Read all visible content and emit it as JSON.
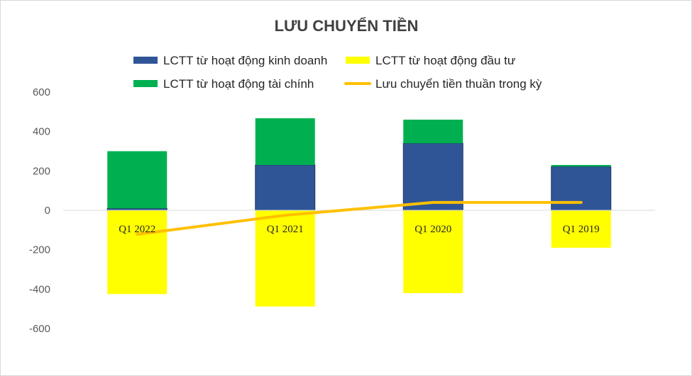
{
  "chart_data": {
    "type": "bar",
    "title": "LƯU CHUYỂN TIỀN",
    "xlabel": "",
    "ylabel": "",
    "ylim": [
      -600,
      600
    ],
    "yticks": [
      600,
      400,
      200,
      0,
      -200,
      -400,
      -600
    ],
    "categories": [
      "Q1 2022",
      "Q1 2021",
      "Q1 2020",
      "Q1 2019"
    ],
    "stacked": true,
    "grid": false,
    "legend_position": "top",
    "series": [
      {
        "name": "LCTT từ hoạt động kinh doanh",
        "type": "bar",
        "color": "#2f5597",
        "values": [
          10,
          230,
          340,
          222
        ]
      },
      {
        "name": "LCTT từ hoạt động đầu tư",
        "type": "bar",
        "color": "#ffff00",
        "values": [
          -425,
          -488,
          -420,
          -190
        ]
      },
      {
        "name": "LCTT từ hoạt động tài chính",
        "type": "bar",
        "color": "#00b050",
        "values": [
          290,
          237,
          120,
          8
        ]
      },
      {
        "name": "Lưu chuyển tiền thuần trong kỳ",
        "type": "line",
        "color": "#ffc000",
        "values": [
          -122,
          -25,
          40,
          40
        ]
      }
    ]
  }
}
